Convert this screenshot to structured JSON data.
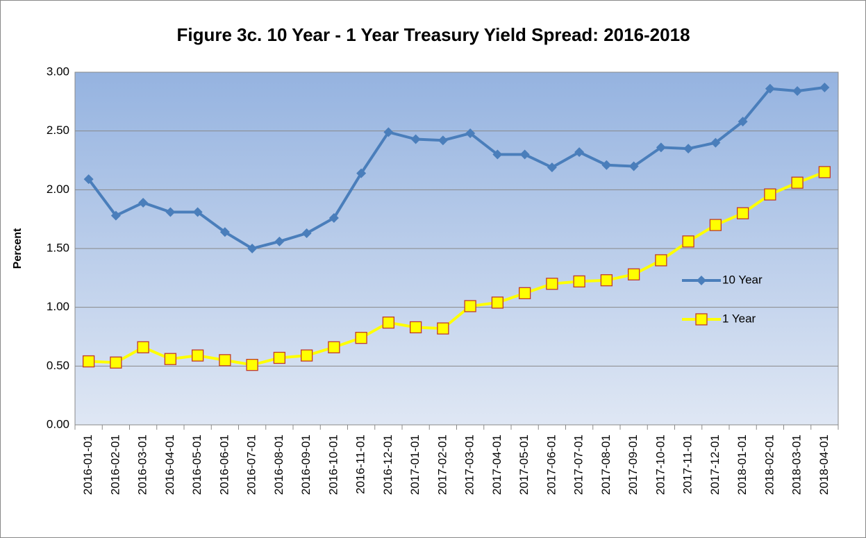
{
  "chart_data": {
    "type": "line",
    "title": "Figure 3c.  10 Year - 1 Year Treasury Yield Spread: 2016-2018",
    "y_label": "Percent",
    "categories": [
      "2016-01-01",
      "2016-02-01",
      "2016-03-01",
      "2016-04-01",
      "2016-05-01",
      "2016-06-01",
      "2016-07-01",
      "2016-08-01",
      "2016-09-01",
      "2016-10-01",
      "2016-11-01",
      "2016-12-01",
      "2017-01-01",
      "2017-02-01",
      "2017-03-01",
      "2017-04-01",
      "2017-05-01",
      "2017-06-01",
      "2017-07-01",
      "2017-08-01",
      "2017-09-01",
      "2017-10-01",
      "2017-11-01",
      "2017-12-01",
      "2018-01-01",
      "2018-02-01",
      "2018-03-01",
      "2018-04-01"
    ],
    "series": [
      {
        "name": "10 Year",
        "color": "#4a7ebb",
        "marker": "diamond",
        "values": [
          2.09,
          1.78,
          1.89,
          1.81,
          1.81,
          1.64,
          1.5,
          1.56,
          1.63,
          1.76,
          2.14,
          2.49,
          2.43,
          2.42,
          2.48,
          2.3,
          2.3,
          2.19,
          2.32,
          2.21,
          2.2,
          2.36,
          2.35,
          2.4,
          2.58,
          2.86,
          2.84,
          2.87
        ]
      },
      {
        "name": "1 Year",
        "color": "#ffff00",
        "marker": "square",
        "values": [
          0.54,
          0.53,
          0.66,
          0.56,
          0.59,
          0.55,
          0.51,
          0.57,
          0.59,
          0.66,
          0.74,
          0.87,
          0.83,
          0.82,
          1.01,
          1.04,
          1.12,
          1.2,
          1.22,
          1.23,
          1.28,
          1.4,
          1.56,
          1.7,
          1.8,
          1.96,
          2.06,
          2.15
        ]
      }
    ],
    "ylim": [
      0,
      3
    ],
    "yticks": [
      {
        "value": 0,
        "label": "0.00"
      },
      {
        "value": 0.5,
        "label": "0.50"
      },
      {
        "value": 1,
        "label": "1.00"
      },
      {
        "value": 1.5,
        "label": "1.50"
      },
      {
        "value": 2,
        "label": "2.00"
      },
      {
        "value": 2.5,
        "label": "2.50"
      },
      {
        "value": 3,
        "label": "3.00"
      }
    ],
    "grid": true,
    "legend": "right"
  }
}
